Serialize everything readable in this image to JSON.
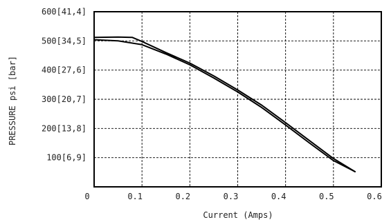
{
  "chart_data": {
    "type": "line",
    "title": "",
    "xlabel": "Current (Amps)",
    "ylabel": "PRESSURE psi [bar]",
    "xlim": [
      0,
      0.6
    ],
    "ylim": [
      0,
      600
    ],
    "grid": true,
    "x_ticks": [
      {
        "value": 0,
        "label": "0"
      },
      {
        "value": 0.1,
        "label": "0.1"
      },
      {
        "value": 0.2,
        "label": "0.2"
      },
      {
        "value": 0.3,
        "label": "0.3"
      },
      {
        "value": 0.4,
        "label": "0.4"
      },
      {
        "value": 0.5,
        "label": "0.5"
      },
      {
        "value": 0.6,
        "label": "0.6"
      }
    ],
    "y_ticks": [
      {
        "value": 100,
        "label": "100[6,9]"
      },
      {
        "value": 200,
        "label": "200[13,8]"
      },
      {
        "value": 300,
        "label": "300[20,7]"
      },
      {
        "value": 400,
        "label": "400[27,6]"
      },
      {
        "value": 500,
        "label": "500[34,5]"
      },
      {
        "value": 600,
        "label": "600[41,4]"
      }
    ],
    "series": [
      {
        "x": [
          0,
          0.05,
          0.1,
          0.15,
          0.2,
          0.25,
          0.3,
          0.35,
          0.4,
          0.45,
          0.5,
          0.545
        ],
        "y": [
          504,
          500,
          487,
          455,
          418,
          373,
          325,
          272,
          212,
          150,
          90,
          52
        ]
      },
      {
        "x": [
          0,
          0.05,
          0.08,
          0.1,
          0.15,
          0.2,
          0.25,
          0.3,
          0.35,
          0.4,
          0.45,
          0.5,
          0.545
        ],
        "y": [
          512,
          513,
          512,
          498,
          460,
          424,
          380,
          332,
          280,
          220,
          158,
          97,
          52
        ]
      }
    ]
  }
}
